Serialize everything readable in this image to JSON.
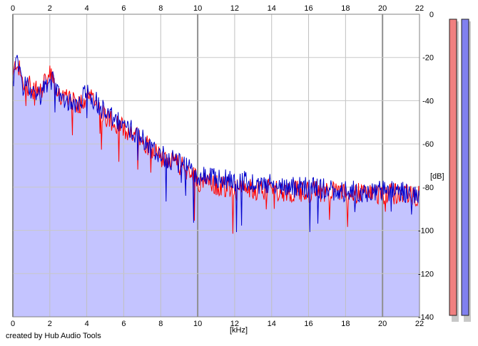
{
  "footer": {
    "credit": "created by Hub Audio Tools"
  },
  "chart_data": {
    "type": "line",
    "title": "",
    "xlabel": "[kHz]",
    "ylabel": "[dB]",
    "xlim": [
      0,
      22
    ],
    "ylim": [
      -140,
      0
    ],
    "x_ticks": [
      "0",
      "2",
      "4",
      "6",
      "8",
      "10",
      "12",
      "14",
      "16",
      "18",
      "20",
      "22"
    ],
    "y_ticks": [
      "0",
      "-20",
      "-40",
      "-60",
      "-80",
      "-100",
      "-120",
      "-140"
    ],
    "grid": true,
    "fill_color": "#c4c4ff",
    "series": [
      {
        "color": "#ff0000",
        "x": [
          0,
          0.2,
          0.5,
          1,
          1.5,
          2,
          2.5,
          3,
          3.5,
          4,
          4.5,
          5,
          5.5,
          6,
          6.5,
          7,
          7.5,
          8,
          8.5,
          9,
          9.5,
          10,
          11,
          12,
          13,
          14,
          15,
          16,
          17,
          18,
          19,
          20,
          21,
          22
        ],
        "y": [
          -30,
          -21,
          -31,
          -34,
          -36,
          -28,
          -37,
          -40,
          -42,
          -38,
          -41,
          -47,
          -50,
          -53,
          -55,
          -58,
          -62,
          -66,
          -68,
          -70,
          -72,
          -77,
          -79,
          -80,
          -81,
          -81,
          -82,
          -82,
          -82,
          -83,
          -83,
          -83,
          -83,
          -84
        ]
      },
      {
        "color": "#0000cc",
        "x": [
          0,
          0.2,
          0.5,
          1,
          1.5,
          2,
          2.5,
          3,
          3.5,
          4,
          4.5,
          5,
          5.5,
          6,
          6.5,
          7,
          7.5,
          8,
          8.5,
          9,
          9.5,
          10,
          11,
          12,
          13,
          14,
          15,
          16,
          17,
          18,
          19,
          20,
          21,
          22
        ],
        "y": [
          -32,
          -22,
          -31,
          -35,
          -37,
          -29,
          -37,
          -40,
          -41,
          -36,
          -40,
          -46,
          -49,
          -52,
          -54,
          -57,
          -61,
          -65,
          -67,
          -69,
          -71,
          -75,
          -76,
          -77,
          -78,
          -79,
          -80,
          -80,
          -81,
          -82,
          -82,
          -82,
          -82,
          -83
        ]
      }
    ],
    "level_meters": [
      {
        "color": "#f08080"
      },
      {
        "color": "#8080f0"
      }
    ]
  }
}
